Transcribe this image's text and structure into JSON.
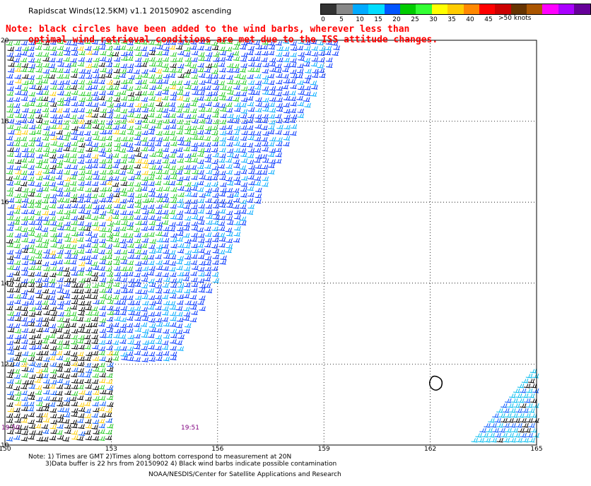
{
  "title": "Rapidscat Winds(12.5KM) v1.1 20150902 ascending",
  "note": {
    "line1": "Note: black circles have been added to the wind barbs, wherever less than",
    "line2": "optimal wind retrieval conditions are met due to the ISS attitude changes."
  },
  "colorbar": {
    "labels": [
      "0",
      "5",
      "10",
      "15",
      "20",
      "25",
      "30",
      "35",
      "40",
      "45"
    ],
    "colors": [
      "#333333",
      "#888888",
      "#00aaff",
      "#00ddff",
      "#0055ff",
      "#00cc00",
      "#33ff33",
      "#ffff00",
      "#ffcc00",
      "#ff8800",
      "#ff0000",
      "#cc0000",
      "#663300",
      "#aa5500",
      "#ff00ff",
      "#aa00ff",
      "#660099"
    ],
    "unit": ">50 knots"
  },
  "axes": {
    "lon_ticks": [
      "150",
      "153",
      "156",
      "159",
      "162",
      "165"
    ],
    "lat_ticks": [
      "20",
      "18",
      "16",
      "14",
      "12",
      "10"
    ]
  },
  "times": {
    "left": "19:50",
    "right": "19:51"
  },
  "footer": {
    "line1": "Note: 1) Times are GMT 2)Times along bottom correspond to measurement at 20N",
    "line2": "3)Data buffer is 22 hrs from 20150902 4) Black wind barbs indicate possible contamination",
    "credit": "NOAA/NESDIS/Center for Satellite Applications and Research"
  }
}
